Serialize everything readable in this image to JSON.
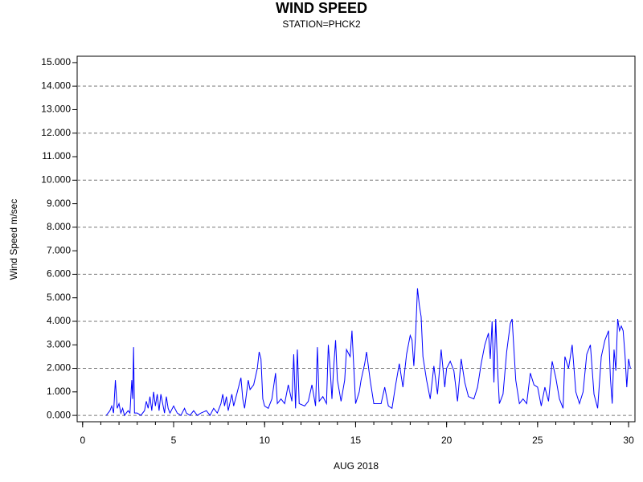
{
  "chart_data": {
    "type": "line",
    "title": "WIND SPEED",
    "subtitle": "STATION=PHCK2",
    "x_label": "AUG 2018",
    "y_label": "Wind Speed m/sec",
    "color": "#0000ff",
    "xlim": [
      -0.3,
      30.35
    ],
    "ylim": [
      -0.27,
      15.27
    ],
    "xticks": [
      0,
      5,
      10,
      15,
      20,
      25,
      30
    ],
    "xminor_ticks": [
      0,
      1,
      2,
      3,
      4,
      5,
      6,
      7,
      8,
      9,
      10,
      11,
      12,
      13,
      14,
      15,
      16,
      17,
      18,
      19,
      20,
      21,
      22,
      23,
      24,
      25,
      26,
      27,
      28,
      29,
      30
    ],
    "yticks": [
      {
        "value": 0,
        "label": "0.000"
      },
      {
        "value": 1,
        "label": "1.000"
      },
      {
        "value": 2,
        "label": "2.000"
      },
      {
        "value": 3,
        "label": "3.000"
      },
      {
        "value": 4,
        "label": "4.000"
      },
      {
        "value": 5,
        "label": "5.000"
      },
      {
        "value": 6,
        "label": "6.000"
      },
      {
        "value": 7,
        "label": "7.000"
      },
      {
        "value": 8,
        "label": "8.000"
      },
      {
        "value": 9,
        "label": "9.000"
      },
      {
        "value": 10,
        "label": "10.000"
      },
      {
        "value": 11,
        "label": "11.000"
      },
      {
        "value": 12,
        "label": "12.000"
      },
      {
        "value": 13,
        "label": "13.000"
      },
      {
        "value": 14,
        "label": "14.000"
      },
      {
        "value": 15,
        "label": "15.000"
      }
    ],
    "ygrid": [
      0,
      2,
      4,
      6,
      8,
      10,
      12,
      14
    ],
    "grid_dashed": true,
    "x": [
      1.3,
      1.5,
      1.6,
      1.7,
      1.8,
      1.9,
      2.0,
      2.1,
      2.2,
      2.3,
      2.5,
      2.6,
      2.7,
      2.75,
      2.8,
      2.85,
      3.0,
      3.2,
      3.4,
      3.5,
      3.6,
      3.7,
      3.8,
      3.9,
      4.0,
      4.1,
      4.2,
      4.3,
      4.4,
      4.5,
      4.6,
      4.7,
      4.8,
      5.0,
      5.2,
      5.4,
      5.6,
      5.7,
      5.9,
      6.1,
      6.3,
      6.5,
      6.8,
      7.0,
      7.2,
      7.4,
      7.6,
      7.7,
      7.8,
      7.9,
      8.0,
      8.2,
      8.3,
      8.5,
      8.7,
      8.8,
      8.9,
      9.1,
      9.2,
      9.4,
      9.6,
      9.7,
      9.8,
      9.9,
      10.0,
      10.2,
      10.4,
      10.6,
      10.7,
      10.9,
      11.1,
      11.3,
      11.5,
      11.6,
      11.7,
      11.8,
      11.9,
      12.2,
      12.4,
      12.6,
      12.8,
      12.9,
      13.0,
      13.2,
      13.4,
      13.5,
      13.6,
      13.7,
      13.8,
      13.9,
      14.0,
      14.2,
      14.4,
      14.5,
      14.7,
      14.8,
      15.0,
      15.2,
      15.3,
      15.5,
      15.6,
      15.8,
      16.0,
      16.2,
      16.4,
      16.6,
      16.8,
      17.0,
      17.2,
      17.4,
      17.6,
      17.8,
      18.0,
      18.1,
      18.2,
      18.3,
      18.4,
      18.5,
      18.6,
      18.7,
      18.9,
      19.1,
      19.3,
      19.5,
      19.7,
      19.9,
      20.0,
      20.2,
      20.4,
      20.6,
      20.8,
      21.0,
      21.2,
      21.5,
      21.7,
      21.9,
      22.1,
      22.3,
      22.4,
      22.5,
      22.6,
      22.7,
      22.8,
      22.9,
      23.1,
      23.3,
      23.5,
      23.6,
      23.8,
      24.0,
      24.2,
      24.4,
      24.6,
      24.8,
      25.0,
      25.2,
      25.4,
      25.6,
      25.8,
      26.0,
      26.2,
      26.4,
      26.5,
      26.7,
      26.9,
      27.1,
      27.3,
      27.5,
      27.7,
      27.9,
      28.1,
      28.3,
      28.5,
      28.7,
      28.9,
      29.0,
      29.1,
      29.2,
      29.3,
      29.4,
      29.5,
      29.6,
      29.7,
      29.8,
      29.9,
      30.0,
      30.1
    ],
    "values": [
      0.0,
      0.2,
      0.4,
      0.1,
      1.5,
      0.3,
      0.5,
      0.1,
      0.3,
      0.0,
      0.2,
      0.1,
      1.5,
      0.7,
      2.9,
      0.1,
      0.1,
      0.0,
      0.2,
      0.6,
      0.3,
      0.8,
      0.2,
      1.0,
      0.4,
      0.9,
      0.2,
      0.9,
      0.5,
      0.1,
      0.8,
      0.3,
      0.1,
      0.4,
      0.1,
      0.0,
      0.3,
      0.1,
      0.0,
      0.2,
      0.0,
      0.1,
      0.2,
      0.0,
      0.3,
      0.1,
      0.5,
      0.9,
      0.4,
      0.8,
      0.2,
      0.9,
      0.4,
      1.0,
      1.6,
      0.7,
      0.3,
      1.5,
      1.1,
      1.3,
      2.0,
      2.7,
      2.4,
      0.7,
      0.4,
      0.3,
      0.7,
      1.8,
      0.5,
      0.7,
      0.5,
      1.3,
      0.6,
      2.6,
      0.3,
      2.8,
      0.5,
      0.4,
      0.6,
      1.3,
      0.4,
      2.9,
      0.6,
      0.8,
      0.5,
      3.0,
      2.0,
      0.7,
      2.1,
      3.2,
      1.5,
      0.6,
      1.5,
      2.8,
      2.5,
      3.6,
      0.5,
      1.0,
      1.5,
      2.2,
      2.7,
      1.5,
      0.5,
      0.5,
      0.5,
      1.2,
      0.4,
      0.3,
      1.3,
      2.2,
      1.2,
      2.6,
      3.4,
      3.2,
      2.1,
      3.5,
      5.4,
      4.7,
      4.2,
      2.5,
      1.5,
      0.7,
      2.1,
      0.9,
      2.8,
      1.2,
      2.0,
      2.3,
      1.9,
      0.6,
      2.4,
      1.4,
      0.8,
      0.7,
      1.2,
      2.2,
      3.0,
      3.5,
      2.4,
      4.0,
      1.4,
      4.1,
      2.0,
      0.5,
      0.9,
      2.7,
      3.9,
      4.1,
      1.5,
      0.5,
      0.7,
      0.5,
      1.8,
      1.3,
      1.2,
      0.4,
      1.2,
      0.6,
      2.3,
      1.6,
      0.7,
      0.3,
      2.5,
      2.0,
      3.0,
      1.0,
      0.5,
      1.0,
      2.6,
      3.0,
      0.9,
      0.3,
      2.5,
      3.2,
      3.6,
      1.6,
      0.5,
      2.8,
      1.9,
      4.1,
      3.6,
      3.8,
      3.6,
      2.6,
      1.2,
      2.4,
      2.0
    ]
  }
}
